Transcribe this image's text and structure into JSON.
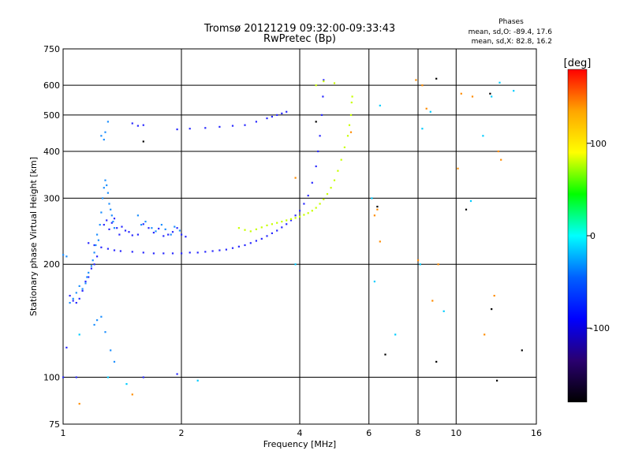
{
  "chart_data": {
    "type": "scatter",
    "title": "Tromsø 20121219 09:32:00-09:33:43",
    "subtitle": "RwPretec (Bp)",
    "xlabel": "Frequency [MHz]",
    "ylabel": "Stationary phase Virtual Height [km]",
    "x_scale": "log2",
    "y_scale": "log",
    "xlim": [
      1,
      16
    ],
    "ylim": [
      75,
      750
    ],
    "x_ticks": [
      1,
      2,
      4,
      6,
      8,
      10,
      16
    ],
    "y_ticks": [
      75,
      100,
      200,
      300,
      400,
      500,
      600,
      750
    ],
    "grid": true,
    "info": {
      "heading": "Phases",
      "line1": "mean, sd,O: -89.4, 17.6",
      "line2": "mean, sd,X:  82.8, 16.2"
    },
    "colorbar": {
      "label": "[deg]",
      "range": [
        -180,
        180
      ],
      "ticks": [
        100,
        0,
        -100
      ],
      "colors": [
        "#ff0000",
        "#ffa500",
        "#ffff00",
        "#00ff00",
        "#00ffff",
        "#0060ff",
        "#0000ff",
        "#2a0070",
        "#000000"
      ]
    },
    "series": [
      {
        "color": "#2a2aff",
        "points": [
          [
            1.27,
            255
          ],
          [
            1.29,
            262
          ],
          [
            1.31,
            248
          ],
          [
            1.33,
            258
          ],
          [
            1.35,
            265
          ],
          [
            1.37,
            250
          ],
          [
            1.39,
            240
          ],
          [
            1.41,
            252
          ],
          [
            1.44,
            246
          ],
          [
            1.47,
            244
          ],
          [
            1.5,
            239
          ],
          [
            1.55,
            240
          ],
          [
            1.6,
            256
          ],
          [
            1.65,
            250
          ],
          [
            1.7,
            243
          ],
          [
            1.75,
            249
          ],
          [
            1.8,
            238
          ],
          [
            1.85,
            240
          ],
          [
            1.9,
            244
          ],
          [
            1.95,
            250
          ],
          [
            2.0,
            240
          ],
          [
            2.05,
            237
          ],
          [
            1.16,
            228
          ],
          [
            1.2,
            225
          ],
          [
            1.25,
            222
          ],
          [
            1.3,
            220
          ],
          [
            1.35,
            218
          ],
          [
            1.4,
            217
          ],
          [
            1.5,
            216
          ],
          [
            1.6,
            215
          ],
          [
            1.7,
            214
          ],
          [
            1.8,
            214
          ],
          [
            1.9,
            214
          ],
          [
            2.0,
            214
          ],
          [
            2.1,
            215
          ],
          [
            2.2,
            215
          ],
          [
            2.3,
            216
          ],
          [
            2.4,
            217
          ],
          [
            2.5,
            218
          ],
          [
            2.6,
            219
          ],
          [
            2.7,
            221
          ],
          [
            2.8,
            223
          ],
          [
            2.9,
            225
          ],
          [
            3.0,
            228
          ],
          [
            3.1,
            231
          ],
          [
            3.2,
            234
          ],
          [
            3.3,
            238
          ],
          [
            3.4,
            242
          ],
          [
            3.5,
            246
          ],
          [
            3.6,
            251
          ],
          [
            3.7,
            256
          ],
          [
            3.8,
            262
          ],
          [
            3.9,
            270
          ],
          [
            4.0,
            278
          ],
          [
            4.1,
            290
          ],
          [
            4.2,
            305
          ],
          [
            4.3,
            330
          ],
          [
            4.4,
            365
          ],
          [
            4.45,
            400
          ],
          [
            4.5,
            440
          ],
          [
            4.55,
            500
          ],
          [
            4.58,
            560
          ],
          [
            4.6,
            620
          ],
          [
            3.3,
            490
          ],
          [
            3.5,
            500
          ],
          [
            3.6,
            505
          ],
          [
            3.7,
            510
          ],
          [
            3.4,
            495
          ],
          [
            3.1,
            480
          ],
          [
            2.9,
            470
          ],
          [
            2.7,
            468
          ],
          [
            2.5,
            465
          ],
          [
            2.3,
            462
          ],
          [
            2.1,
            460
          ],
          [
            1.95,
            458
          ],
          [
            1.6,
            470
          ],
          [
            1.55,
            468
          ],
          [
            1.5,
            475
          ],
          [
            1.04,
            165
          ],
          [
            1.06,
            160
          ],
          [
            1.08,
            158
          ],
          [
            1.1,
            162
          ],
          [
            1.12,
            170
          ],
          [
            1.14,
            180
          ],
          [
            1.16,
            185
          ],
          [
            1.18,
            195
          ],
          [
            1.2,
            200
          ],
          [
            1.22,
            210
          ],
          [
            1.02,
            120
          ],
          [
            1.0,
            100
          ],
          [
            1.08,
            100
          ],
          [
            1.6,
            100
          ],
          [
            1.95,
            102
          ]
        ]
      },
      {
        "color": "#1e90ff",
        "points": [
          [
            1.22,
            240
          ],
          [
            1.24,
            255
          ],
          [
            1.25,
            275
          ],
          [
            1.26,
            300
          ],
          [
            1.27,
            320
          ],
          [
            1.28,
            335
          ],
          [
            1.29,
            325
          ],
          [
            1.3,
            310
          ],
          [
            1.31,
            290
          ],
          [
            1.32,
            280
          ],
          [
            1.33,
            270
          ],
          [
            1.34,
            260
          ],
          [
            1.35,
            250
          ],
          [
            1.23,
            232
          ],
          [
            1.21,
            225
          ],
          [
            1.2,
            215
          ],
          [
            1.19,
            205
          ],
          [
            1.18,
            198
          ],
          [
            1.16,
            190
          ],
          [
            1.15,
            185
          ],
          [
            1.14,
            178
          ],
          [
            1.12,
            172
          ],
          [
            1.25,
            440
          ],
          [
            1.27,
            430
          ],
          [
            1.28,
            450
          ],
          [
            1.3,
            480
          ],
          [
            1.1,
            175
          ],
          [
            1.08,
            168
          ],
          [
            1.06,
            162
          ],
          [
            1.04,
            158
          ],
          [
            1.02,
            210
          ],
          [
            1.0,
            212
          ],
          [
            1.22,
            142
          ],
          [
            1.2,
            138
          ],
          [
            1.25,
            145
          ],
          [
            1.28,
            132
          ],
          [
            1.32,
            118
          ],
          [
            1.35,
            110
          ],
          [
            1.55,
            270
          ],
          [
            1.58,
            255
          ],
          [
            1.62,
            260
          ],
          [
            1.68,
            250
          ],
          [
            1.72,
            245
          ],
          [
            1.78,
            255
          ],
          [
            1.82,
            248
          ],
          [
            1.88,
            240
          ],
          [
            1.92,
            252
          ],
          [
            1.98,
            246
          ]
        ]
      },
      {
        "color": "#c8ff00",
        "points": [
          [
            3.0,
            245
          ],
          [
            3.1,
            248
          ],
          [
            3.2,
            251
          ],
          [
            3.3,
            254
          ],
          [
            3.4,
            256
          ],
          [
            3.5,
            258
          ],
          [
            3.6,
            260
          ],
          [
            3.7,
            262
          ],
          [
            3.8,
            264
          ],
          [
            3.9,
            266
          ],
          [
            4.0,
            268
          ],
          [
            4.1,
            271
          ],
          [
            4.2,
            274
          ],
          [
            4.3,
            278
          ],
          [
            4.4,
            283
          ],
          [
            4.5,
            290
          ],
          [
            4.6,
            298
          ],
          [
            4.7,
            308
          ],
          [
            4.8,
            320
          ],
          [
            4.9,
            335
          ],
          [
            5.0,
            355
          ],
          [
            5.1,
            380
          ],
          [
            5.2,
            410
          ],
          [
            5.3,
            440
          ],
          [
            5.35,
            470
          ],
          [
            5.4,
            500
          ],
          [
            5.42,
            540
          ],
          [
            5.44,
            560
          ],
          [
            2.8,
            250
          ],
          [
            2.9,
            247
          ],
          [
            4.4,
            600
          ],
          [
            4.6,
            615
          ],
          [
            4.9,
            608
          ]
        ]
      },
      {
        "color": "#ff8c00",
        "points": [
          [
            6.3,
            280
          ],
          [
            6.2,
            270
          ],
          [
            6.4,
            230
          ],
          [
            8.0,
            205
          ],
          [
            8.4,
            520
          ],
          [
            8.2,
            600
          ],
          [
            10.3,
            570
          ],
          [
            11.0,
            560
          ],
          [
            12.5,
            165
          ],
          [
            12.8,
            400
          ],
          [
            9.0,
            200
          ],
          [
            7.9,
            620
          ],
          [
            13.0,
            380
          ],
          [
            1.1,
            85
          ],
          [
            1.5,
            90
          ],
          [
            11.8,
            130
          ],
          [
            8.7,
            160
          ],
          [
            10.1,
            360
          ],
          [
            5.4,
            450
          ],
          [
            3.9,
            340
          ]
        ]
      },
      {
        "color": "#00ccff",
        "points": [
          [
            6.1,
            300
          ],
          [
            6.2,
            180
          ],
          [
            7.0,
            130
          ],
          [
            8.1,
            200
          ],
          [
            8.6,
            510
          ],
          [
            9.3,
            150
          ],
          [
            10.9,
            295
          ],
          [
            11.7,
            440
          ],
          [
            12.9,
            610
          ],
          [
            14.0,
            580
          ],
          [
            12.3,
            560
          ],
          [
            8.2,
            460
          ],
          [
            6.4,
            530
          ],
          [
            3.9,
            200
          ],
          [
            1.3,
            100
          ],
          [
            1.45,
            96
          ],
          [
            1.1,
            130
          ],
          [
            2.2,
            98
          ]
        ]
      },
      {
        "color": "#000000",
        "points": [
          [
            8.9,
            625
          ],
          [
            6.6,
            115
          ],
          [
            12.7,
            98
          ],
          [
            14.7,
            118
          ],
          [
            12.3,
            152
          ],
          [
            10.6,
            280
          ],
          [
            6.3,
            285
          ],
          [
            4.4,
            480
          ],
          [
            1.6,
            425
          ],
          [
            12.2,
            570
          ],
          [
            8.9,
            110
          ]
        ]
      }
    ]
  }
}
